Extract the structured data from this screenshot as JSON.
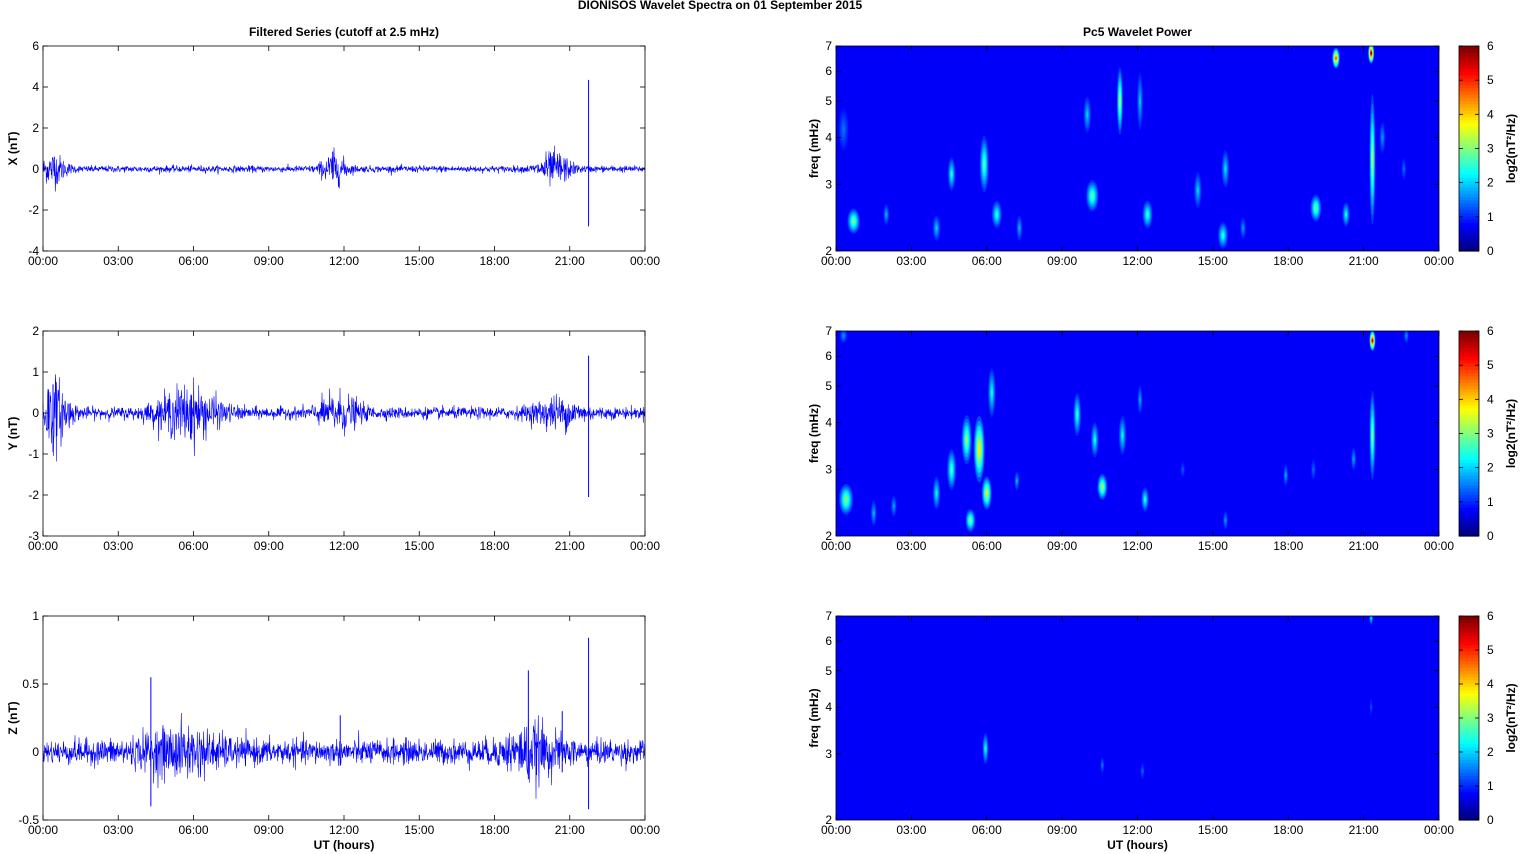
{
  "title": "DIONISOS Wavelet Spectra on 01 September 2015",
  "colors": {
    "series": "#0000ff",
    "axis": "#000000"
  },
  "chart_data": [
    {
      "id": "x-series",
      "type": "line",
      "title": "Filtered Series (cutoff at 2.5 mHz)",
      "xlabel": "",
      "ylabel": "X (nT)",
      "xlim": [
        0,
        24
      ],
      "ylim": [
        -4,
        6
      ],
      "x_ticks": [
        "00:00",
        "03:00",
        "06:00",
        "09:00",
        "12:00",
        "15:00",
        "18:00",
        "21:00",
        "00:00"
      ],
      "y_ticks": [
        -4,
        -2,
        0,
        2,
        4,
        6
      ],
      "baseline_noise": 0.08,
      "bursts": [
        {
          "t": 0.4,
          "amp": 0.35,
          "width": 0.5
        },
        {
          "t": 11.6,
          "amp": 0.35,
          "width": 0.5
        },
        {
          "t": 20.4,
          "amp": 0.4,
          "width": 0.6
        }
      ],
      "spikes": [
        {
          "t": 21.75,
          "max": 4.35,
          "min": -2.8
        },
        {
          "t": 11.55,
          "max": 0.85,
          "min": -0.5
        },
        {
          "t": 0.45,
          "max": 0.6,
          "min": -0.35
        }
      ]
    },
    {
      "id": "y-series",
      "type": "line",
      "title": "",
      "xlabel": "",
      "ylabel": "Y (nT)",
      "xlim": [
        0,
        24
      ],
      "ylim": [
        -3,
        2
      ],
      "x_ticks": [
        "00:00",
        "03:00",
        "06:00",
        "09:00",
        "12:00",
        "15:00",
        "18:00",
        "21:00",
        "00:00"
      ],
      "y_ticks": [
        -3,
        -2,
        -1,
        0,
        1,
        2
      ],
      "baseline_noise": 0.07,
      "bursts": [
        {
          "t": 0.4,
          "amp": 0.4,
          "width": 0.6
        },
        {
          "t": 5.8,
          "amp": 0.3,
          "width": 1.2
        },
        {
          "t": 11.8,
          "amp": 0.2,
          "width": 0.8
        },
        {
          "t": 20.5,
          "amp": 0.15,
          "width": 1.0
        }
      ],
      "spikes": [
        {
          "t": 21.75,
          "max": 1.4,
          "min": -2.05
        },
        {
          "t": 0.4,
          "max": 0.7,
          "min": -0.95
        },
        {
          "t": 5.9,
          "max": 0.45,
          "min": -0.65
        }
      ]
    },
    {
      "id": "z-series",
      "type": "line",
      "title": "",
      "xlabel": "UT (hours)",
      "ylabel": "Z (nT)",
      "xlim": [
        0,
        24
      ],
      "ylim": [
        -0.5,
        1
      ],
      "x_ticks": [
        "00:00",
        "03:00",
        "06:00",
        "09:00",
        "12:00",
        "15:00",
        "18:00",
        "21:00",
        "00:00"
      ],
      "y_ticks": [
        -0.5,
        0,
        0.5,
        1
      ],
      "baseline_noise": 0.045,
      "bursts": [
        {
          "t": 5.5,
          "amp": 0.06,
          "width": 1.6
        },
        {
          "t": 19.5,
          "amp": 0.07,
          "width": 1.0
        }
      ],
      "spikes": [
        {
          "t": 21.75,
          "max": 0.84,
          "min": -0.42
        },
        {
          "t": 4.3,
          "max": 0.55,
          "min": -0.4
        },
        {
          "t": 19.35,
          "max": 0.6,
          "min": -0.2
        },
        {
          "t": 20.7,
          "max": 0.3,
          "min": -0.15
        },
        {
          "t": 11.85,
          "max": 0.27,
          "min": -0.1
        }
      ]
    },
    {
      "id": "x-wavelet",
      "type": "heatmap",
      "title": "Pc5 Wavelet Power",
      "xlabel": "",
      "ylabel": "freq (mHz)",
      "xlim": [
        0,
        24
      ],
      "ylim": [
        2,
        7
      ],
      "yscale": "log",
      "colorbar_label": "log2(nT²/Hz)",
      "clim": [
        0,
        6
      ],
      "x_ticks": [
        "00:00",
        "03:00",
        "06:00",
        "09:00",
        "12:00",
        "15:00",
        "18:00",
        "21:00",
        "00:00"
      ],
      "y_ticks": [
        2,
        3,
        4,
        5,
        6,
        7
      ],
      "colorbar_ticks": [
        0,
        1,
        2,
        3,
        4,
        5,
        6
      ],
      "blobs": [
        {
          "t": 0.7,
          "f": 2.4,
          "dt": 0.25,
          "df": 0.25,
          "p": 2.6
        },
        {
          "t": 0.3,
          "f": 4.2,
          "dt": 0.2,
          "df": 0.9,
          "p": 0.8
        },
        {
          "t": 2.0,
          "f": 2.5,
          "dt": 0.12,
          "df": 0.2,
          "p": 1.2
        },
        {
          "t": 4.0,
          "f": 2.3,
          "dt": 0.15,
          "df": 0.25,
          "p": 1.4
        },
        {
          "t": 4.6,
          "f": 3.2,
          "dt": 0.15,
          "df": 0.5,
          "p": 1.9
        },
        {
          "t": 5.9,
          "f": 3.4,
          "dt": 0.18,
          "df": 1.0,
          "p": 2.3
        },
        {
          "t": 6.4,
          "f": 2.5,
          "dt": 0.2,
          "df": 0.3,
          "p": 2.0
        },
        {
          "t": 7.3,
          "f": 2.3,
          "dt": 0.12,
          "df": 0.25,
          "p": 1.2
        },
        {
          "t": 10.2,
          "f": 2.8,
          "dt": 0.25,
          "df": 0.4,
          "p": 2.4
        },
        {
          "t": 10.0,
          "f": 4.6,
          "dt": 0.15,
          "df": 0.8,
          "p": 1.4
        },
        {
          "t": 11.3,
          "f": 5.0,
          "dt": 0.12,
          "df": 1.8,
          "p": 2.8
        },
        {
          "t": 12.1,
          "f": 5.0,
          "dt": 0.12,
          "df": 1.5,
          "p": 1.3
        },
        {
          "t": 12.4,
          "f": 2.5,
          "dt": 0.2,
          "df": 0.3,
          "p": 2.1
        },
        {
          "t": 14.4,
          "f": 2.9,
          "dt": 0.15,
          "df": 0.5,
          "p": 1.4
        },
        {
          "t": 15.4,
          "f": 2.2,
          "dt": 0.2,
          "df": 0.25,
          "p": 2.0
        },
        {
          "t": 15.5,
          "f": 3.3,
          "dt": 0.15,
          "df": 0.6,
          "p": 1.5
        },
        {
          "t": 16.2,
          "f": 2.3,
          "dt": 0.12,
          "df": 0.2,
          "p": 1.0
        },
        {
          "t": 19.1,
          "f": 2.6,
          "dt": 0.22,
          "df": 0.3,
          "p": 2.5
        },
        {
          "t": 19.9,
          "f": 6.5,
          "dt": 0.15,
          "df": 0.5,
          "p": 4.5
        },
        {
          "t": 20.3,
          "f": 2.5,
          "dt": 0.15,
          "df": 0.25,
          "p": 1.8
        },
        {
          "t": 21.35,
          "f": 3.5,
          "dt": 0.12,
          "df": 2.5,
          "p": 2.8
        },
        {
          "t": 21.3,
          "f": 6.7,
          "dt": 0.12,
          "df": 0.5,
          "p": 5.7
        },
        {
          "t": 21.75,
          "f": 4.0,
          "dt": 0.12,
          "df": 0.6,
          "p": 1.0
        },
        {
          "t": 22.6,
          "f": 3.3,
          "dt": 0.1,
          "df": 0.3,
          "p": 0.7
        }
      ]
    },
    {
      "id": "y-wavelet",
      "type": "heatmap",
      "title": "",
      "xlabel": "",
      "ylabel": "freq (mHz)",
      "xlim": [
        0,
        24
      ],
      "ylim": [
        2,
        7
      ],
      "yscale": "log",
      "colorbar_label": "log2(nT²/Hz)",
      "clim": [
        0,
        6
      ],
      "x_ticks": [
        "00:00",
        "03:00",
        "06:00",
        "09:00",
        "12:00",
        "15:00",
        "18:00",
        "21:00",
        "00:00"
      ],
      "y_ticks": [
        2,
        3,
        4,
        5,
        6,
        7
      ],
      "colorbar_ticks": [
        0,
        1,
        2,
        3,
        4,
        5,
        6
      ],
      "blobs": [
        {
          "t": 0.4,
          "f": 2.5,
          "dt": 0.28,
          "df": 0.35,
          "p": 2.7
        },
        {
          "t": 0.3,
          "f": 6.8,
          "dt": 0.15,
          "df": 0.3,
          "p": 1.0
        },
        {
          "t": 1.5,
          "f": 2.3,
          "dt": 0.12,
          "df": 0.25,
          "p": 1.2
        },
        {
          "t": 2.3,
          "f": 2.4,
          "dt": 0.12,
          "df": 0.2,
          "p": 1.1
        },
        {
          "t": 4.0,
          "f": 2.6,
          "dt": 0.15,
          "df": 0.4,
          "p": 1.7
        },
        {
          "t": 4.6,
          "f": 3.0,
          "dt": 0.18,
          "df": 0.6,
          "p": 2.2
        },
        {
          "t": 5.2,
          "f": 3.6,
          "dt": 0.2,
          "df": 0.9,
          "p": 2.7
        },
        {
          "t": 5.7,
          "f": 3.4,
          "dt": 0.22,
          "df": 1.2,
          "p": 3.6
        },
        {
          "t": 6.0,
          "f": 2.6,
          "dt": 0.2,
          "df": 0.4,
          "p": 3.2
        },
        {
          "t": 5.35,
          "f": 2.2,
          "dt": 0.2,
          "df": 0.2,
          "p": 2.6
        },
        {
          "t": 6.2,
          "f": 4.8,
          "dt": 0.15,
          "df": 1.2,
          "p": 1.8
        },
        {
          "t": 7.2,
          "f": 2.8,
          "dt": 0.1,
          "df": 0.2,
          "p": 1.2
        },
        {
          "t": 9.6,
          "f": 4.2,
          "dt": 0.15,
          "df": 0.9,
          "p": 2.0
        },
        {
          "t": 10.6,
          "f": 2.7,
          "dt": 0.2,
          "df": 0.3,
          "p": 2.9
        },
        {
          "t": 10.3,
          "f": 3.6,
          "dt": 0.15,
          "df": 0.6,
          "p": 1.8
        },
        {
          "t": 11.4,
          "f": 3.7,
          "dt": 0.15,
          "df": 0.7,
          "p": 1.7
        },
        {
          "t": 12.3,
          "f": 2.5,
          "dt": 0.15,
          "df": 0.25,
          "p": 1.9
        },
        {
          "t": 12.1,
          "f": 4.6,
          "dt": 0.1,
          "df": 0.6,
          "p": 1.1
        },
        {
          "t": 13.8,
          "f": 3.0,
          "dt": 0.1,
          "df": 0.15,
          "p": 0.6
        },
        {
          "t": 15.5,
          "f": 2.2,
          "dt": 0.1,
          "df": 0.15,
          "p": 1.0
        },
        {
          "t": 17.9,
          "f": 2.9,
          "dt": 0.1,
          "df": 0.25,
          "p": 1.1
        },
        {
          "t": 19.0,
          "f": 3.0,
          "dt": 0.1,
          "df": 0.25,
          "p": 0.7
        },
        {
          "t": 20.6,
          "f": 3.2,
          "dt": 0.1,
          "df": 0.3,
          "p": 1.1
        },
        {
          "t": 21.35,
          "f": 3.7,
          "dt": 0.12,
          "df": 1.8,
          "p": 2.5
        },
        {
          "t": 21.35,
          "f": 6.6,
          "dt": 0.12,
          "df": 0.5,
          "p": 5.4
        },
        {
          "t": 22.7,
          "f": 6.8,
          "dt": 0.1,
          "df": 0.3,
          "p": 1.0
        }
      ]
    },
    {
      "id": "z-wavelet",
      "type": "heatmap",
      "title": "",
      "xlabel": "UT (hours)",
      "ylabel": "freq (mHz)",
      "xlim": [
        0,
        24
      ],
      "ylim": [
        2,
        7
      ],
      "yscale": "log",
      "colorbar_label": "log2(nT²/Hz)",
      "clim": [
        0,
        6
      ],
      "x_ticks": [
        "00:00",
        "03:00",
        "06:00",
        "09:00",
        "12:00",
        "15:00",
        "18:00",
        "21:00",
        "00:00"
      ],
      "y_ticks": [
        2,
        3,
        4,
        5,
        6,
        7
      ],
      "colorbar_ticks": [
        0,
        1,
        2,
        3,
        4,
        5,
        6
      ],
      "blobs": [
        {
          "t": 5.95,
          "f": 3.1,
          "dt": 0.12,
          "df": 0.45,
          "p": 1.8
        },
        {
          "t": 10.6,
          "f": 2.8,
          "dt": 0.08,
          "df": 0.15,
          "p": 0.8
        },
        {
          "t": 12.2,
          "f": 2.7,
          "dt": 0.08,
          "df": 0.15,
          "p": 0.7
        },
        {
          "t": 21.3,
          "f": 6.9,
          "dt": 0.08,
          "df": 0.25,
          "p": 1.4
        },
        {
          "t": 21.3,
          "f": 4.0,
          "dt": 0.05,
          "df": 0.3,
          "p": 0.5
        }
      ]
    }
  ]
}
